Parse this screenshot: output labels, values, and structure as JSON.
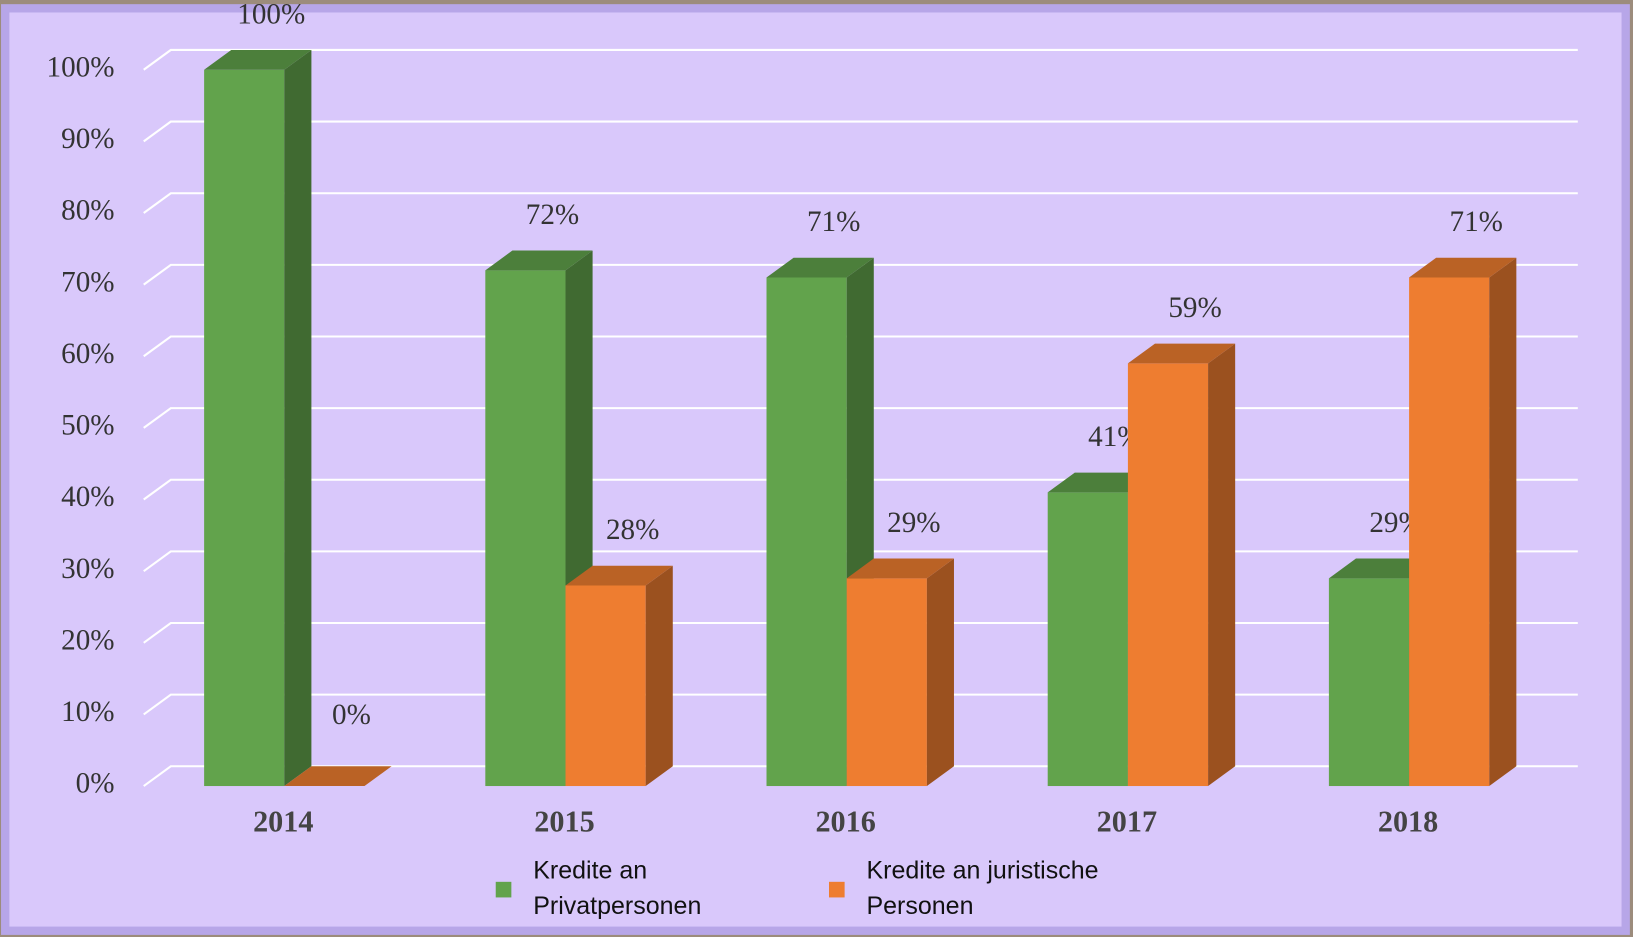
{
  "chart_data": {
    "type": "bar3d",
    "categories": [
      "2014",
      "2015",
      "2016",
      "2017",
      "2018"
    ],
    "series": [
      {
        "name": "Kredite an Privatpersonen",
        "color": "#62a34c",
        "values": [
          100,
          72,
          71,
          41,
          29
        ],
        "value_labels": [
          "100%",
          "72%",
          "71%",
          "41%",
          "29%"
        ]
      },
      {
        "name": "Kredite an juristische Personen",
        "color": "#ee7d30",
        "values": [
          0,
          28,
          29,
          59,
          71
        ],
        "value_labels": [
          "0%",
          "28%",
          "29%",
          "59%",
          "71%"
        ]
      }
    ],
    "ylim": [
      0,
      100
    ],
    "yticks": [
      {
        "value": 0,
        "label": "0%"
      },
      {
        "value": 10,
        "label": "10%"
      },
      {
        "value": 20,
        "label": "20%"
      },
      {
        "value": 30,
        "label": "30%"
      },
      {
        "value": 40,
        "label": "40%"
      },
      {
        "value": 50,
        "label": "50%"
      },
      {
        "value": 60,
        "label": "60%"
      },
      {
        "value": 70,
        "label": "70%"
      },
      {
        "value": 80,
        "label": "80%"
      },
      {
        "value": 90,
        "label": "90%"
      },
      {
        "value": 100,
        "label": "100%"
      }
    ],
    "grid": true,
    "legend": "bottom"
  }
}
